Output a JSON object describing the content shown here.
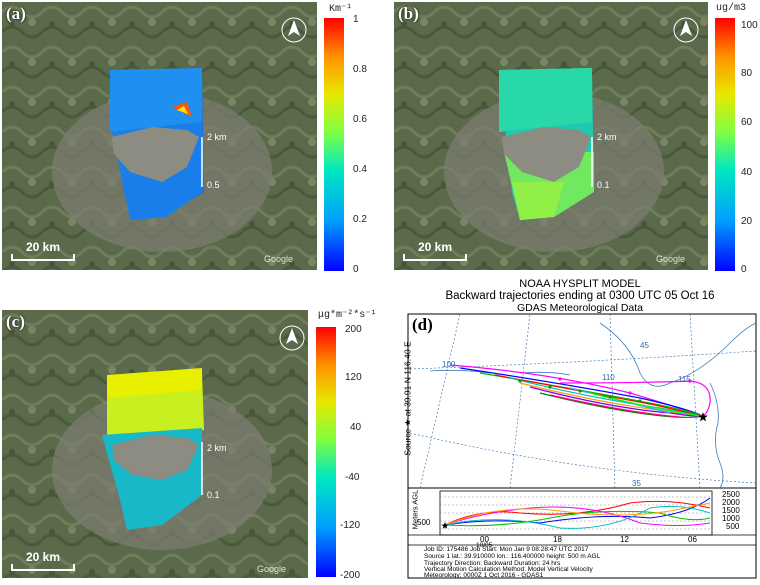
{
  "panels": {
    "a": {
      "label": "(a)",
      "unit": "Km⁻¹",
      "ticks": [
        "1",
        "0.8",
        "0.6",
        "0.4",
        "0.2",
        "0"
      ],
      "scale": "20 km",
      "height_labels": [
        "2 km",
        "0.5"
      ],
      "watermark": "Google"
    },
    "b": {
      "label": "(b)",
      "unit": "ug/m3",
      "ticks": [
        "100",
        "80",
        "60",
        "40",
        "20",
        "0"
      ],
      "scale": "20 km",
      "height_labels": [
        "2 km",
        "0.1"
      ],
      "watermark": "Google"
    },
    "c": {
      "label": "(c)",
      "unit": "μg*m⁻²*s⁻¹",
      "ticks": [
        "200",
        "120",
        "40",
        "-40",
        "-120",
        "-200"
      ],
      "scale": "20 km",
      "height_labels": [
        "2 km",
        "0.1"
      ],
      "watermark": "Google"
    },
    "d": {
      "label": "(d)"
    }
  },
  "hysplit": {
    "title": "NOAA HYSPLIT MODEL",
    "subtitle": "Backward trajectories ending at 0300 UTC 05 Oct 16",
    "data_source": "GDAS Meteorological Data",
    "y_label": "Source ★ at   39.91 N  116.40 E",
    "lon_labels": [
      "100",
      "110",
      "115"
    ],
    "lat_labels": [
      "45",
      "35"
    ],
    "vert_label": "Meters AGL",
    "vert_ticks": [
      "2500",
      "2000",
      "1500",
      "1000",
      "500"
    ],
    "start_height": "500",
    "time_ticks": [
      "00",
      "18",
      "12",
      "06"
    ],
    "date_label": "10/05",
    "meta": [
      "Job ID: 175486          Job Start: Mon Jan  9 08:28:47 UTC 2017",
      "Source 1      lat.: 39.910000    lon.: 116.400000    height: 500 m AGL",
      "Trajectory Direction: Backward      Duration: 24 hrs",
      "Vertical Motion Calculation Method:      Model Vertical Velocity",
      "Meteorology: 0000Z  1 Oct 2016 - GDAS1"
    ]
  },
  "colors": {
    "map_base": "#5b6a4a",
    "urban": "#8a8a80"
  }
}
